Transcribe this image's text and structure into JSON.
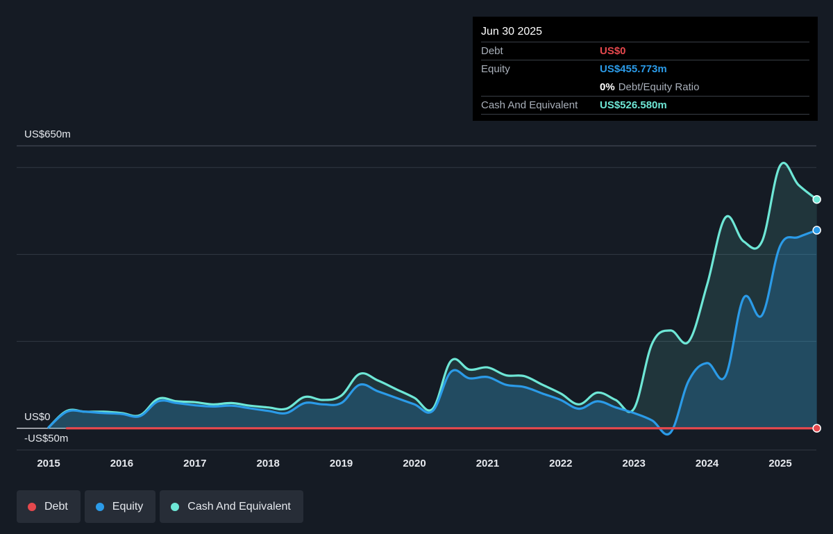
{
  "tooltip": {
    "date": "Jun 30 2025",
    "debt_label": "Debt",
    "debt_value": "US$0",
    "equity_label": "Equity",
    "equity_value": "US$455.773m",
    "ratio_value": "0%",
    "ratio_label": "Debt/Equity Ratio",
    "cash_label": "Cash And Equivalent",
    "cash_value": "US$526.580m"
  },
  "legend": [
    {
      "label": "Debt",
      "color": "#e5484d"
    },
    {
      "label": "Equity",
      "color": "#2b9be8"
    },
    {
      "label": "Cash And Equivalent",
      "color": "#6ee7d6"
    }
  ],
  "colors": {
    "debt": "#e5484d",
    "equity": "#2b9be8",
    "cash": "#6ee7d6",
    "background": "#151b24",
    "grid": "#323a45"
  },
  "chart_data": {
    "type": "area",
    "ylabel_top": "US$650m",
    "ylabel_zero": "US$0",
    "ylabel_bottom": "-US$50m",
    "ylim": [
      -50,
      650
    ],
    "xlim": [
      2015.0,
      2025.5
    ],
    "grid": true,
    "legend_position": "bottom-left",
    "x_ticks": [
      "2015",
      "2016",
      "2017",
      "2018",
      "2019",
      "2020",
      "2021",
      "2022",
      "2023",
      "2024",
      "2025"
    ],
    "series": [
      {
        "name": "Debt",
        "color": "#e5484d",
        "x": [
          2015.25,
          2025.5
        ],
        "y": [
          0,
          0
        ]
      },
      {
        "name": "Equity",
        "color": "#2b9be8",
        "x": [
          2015.0,
          2015.25,
          2015.5,
          2015.75,
          2016.0,
          2016.25,
          2016.5,
          2016.75,
          2017.0,
          2017.25,
          2017.5,
          2017.75,
          2018.0,
          2018.25,
          2018.5,
          2018.75,
          2019.0,
          2019.25,
          2019.5,
          2019.75,
          2020.0,
          2020.25,
          2020.5,
          2020.75,
          2021.0,
          2021.25,
          2021.5,
          2021.75,
          2022.0,
          2022.25,
          2022.5,
          2022.75,
          2023.0,
          2023.25,
          2023.5,
          2023.75,
          2024.0,
          2024.25,
          2024.5,
          2024.75,
          2025.0,
          2025.25,
          2025.5
        ],
        "y": [
          2,
          38,
          38,
          35,
          33,
          28,
          62,
          58,
          53,
          50,
          52,
          46,
          40,
          35,
          58,
          55,
          58,
          100,
          85,
          70,
          55,
          40,
          130,
          115,
          118,
          100,
          95,
          80,
          65,
          45,
          62,
          48,
          35,
          18,
          -10,
          110,
          150,
          120,
          300,
          260,
          420,
          440,
          455.773
        ]
      },
      {
        "name": "Cash And Equivalent",
        "color": "#6ee7d6",
        "x": [
          2015.0,
          2015.25,
          2015.5,
          2015.75,
          2016.0,
          2016.25,
          2016.5,
          2016.75,
          2017.0,
          2017.25,
          2017.5,
          2017.75,
          2018.0,
          2018.25,
          2018.5,
          2018.75,
          2019.0,
          2019.25,
          2019.5,
          2019.75,
          2020.0,
          2020.25,
          2020.5,
          2020.75,
          2021.0,
          2021.25,
          2021.5,
          2021.75,
          2022.0,
          2022.25,
          2022.5,
          2022.75,
          2023.0,
          2023.25,
          2023.5,
          2023.75,
          2024.0,
          2024.25,
          2024.5,
          2024.75,
          2025.0,
          2025.25,
          2025.5
        ],
        "y": [
          2,
          40,
          38,
          38,
          35,
          30,
          68,
          62,
          60,
          55,
          58,
          52,
          48,
          45,
          72,
          65,
          75,
          125,
          110,
          90,
          70,
          45,
          155,
          135,
          140,
          122,
          120,
          100,
          80,
          55,
          82,
          65,
          45,
          195,
          225,
          200,
          330,
          485,
          430,
          430,
          605,
          560,
          526.58
        ]
      }
    ]
  }
}
